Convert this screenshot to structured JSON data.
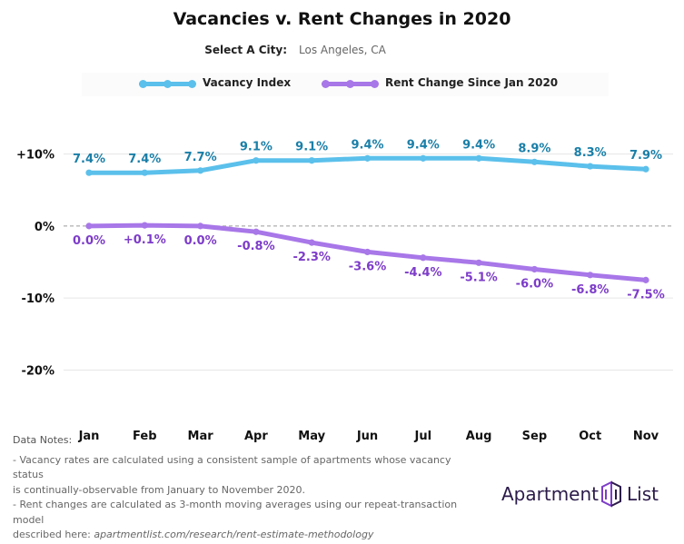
{
  "header": {
    "title": "Vacancies v. Rent Changes in 2020",
    "city_label": "Select A City:",
    "city_value": "Los Angeles, CA"
  },
  "colors": {
    "vacancy_line": "#5bc0eb",
    "vacancy_label": "#1a7fa8",
    "rent_line": "#a877e8",
    "rent_label": "#7d3cc9"
  },
  "chart_data": {
    "type": "line",
    "title": "Vacancies v. Rent Changes in 2020",
    "categories": [
      "Jan",
      "Feb",
      "Mar",
      "Apr",
      "May",
      "Jun",
      "Jul",
      "Aug",
      "Sep",
      "Oct",
      "Nov"
    ],
    "series": [
      {
        "name": "Vacancy Index",
        "values": [
          7.4,
          7.4,
          7.7,
          9.1,
          9.1,
          9.4,
          9.4,
          9.4,
          8.9,
          8.3,
          7.9
        ],
        "labels": [
          "7.4%",
          "7.4%",
          "7.7%",
          "9.1%",
          "9.1%",
          "9.4%",
          "9.4%",
          "9.4%",
          "8.9%",
          "8.3%",
          "7.9%"
        ]
      },
      {
        "name": "Rent Change Since Jan 2020",
        "values": [
          0.0,
          0.1,
          0.0,
          -0.8,
          -2.3,
          -3.6,
          -4.4,
          -5.1,
          -6.0,
          -6.8,
          -7.5
        ],
        "labels": [
          "0.0%",
          "+0.1%",
          "0.0%",
          "-0.8%",
          "-2.3%",
          "-3.6%",
          "-4.4%",
          "-5.1%",
          "-6.0%",
          "-6.8%",
          "-7.5%"
        ]
      }
    ],
    "y_ticks": [
      10,
      0,
      -10,
      -20
    ],
    "y_tick_labels": [
      "+10%",
      "0%",
      "-10%",
      "-20%"
    ],
    "ylim": [
      -27,
      16
    ],
    "zero_line": "dashed",
    "grid": true,
    "legend": "top"
  },
  "notes": {
    "heading": "Data Notes:",
    "line1": "- Vacancy rates are calculated using a consistent sample of apartments whose vacancy status",
    "line2": "is continually-observable from January to November 2020.",
    "line3": "- Rent changes are calculated as 3-month moving averages using our repeat-transaction model",
    "line4_prefix": "described here: ",
    "line4_link": "apartmentlist.com/research/rent-estimate-methodology"
  },
  "logo": {
    "word1": "Apartment",
    "word2": "List"
  }
}
